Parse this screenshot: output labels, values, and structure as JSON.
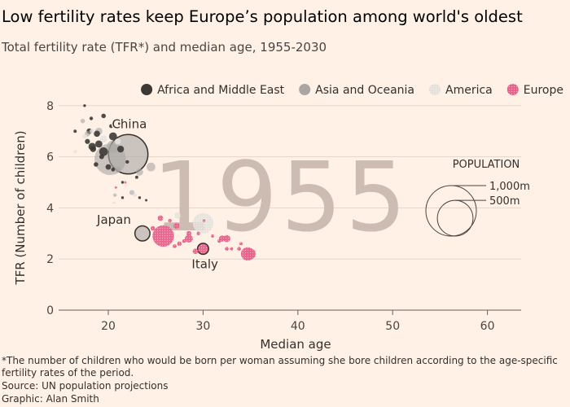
{
  "title": "Low fertility rates keep Europe’s population among world's oldest",
  "subtitle": "Total fertility rate (TFR*) and median age, 1955-2030",
  "chart_data": {
    "type": "scatter",
    "year": "1955",
    "xlabel": "Median age",
    "ylabel": "TFR (Number of children)",
    "xlim": [
      14,
      64
    ],
    "ylim": [
      0,
      8.3
    ],
    "xticks": [
      "20",
      "30",
      "40",
      "50",
      "60"
    ],
    "yticks": [
      "0",
      "2",
      "4",
      "6",
      "8"
    ],
    "grid": "horizontal",
    "legend_position": "top",
    "legend": [
      {
        "name": "Africa and Middle East",
        "color": "#3b3836"
      },
      {
        "name": "Asia and Oceania",
        "color": "#a9a6a3"
      },
      {
        "name": "America",
        "color": "#e4e0dc"
      },
      {
        "name": "Europe",
        "color": "#e8638c"
      }
    ],
    "size_legend": {
      "title": "POPULATION",
      "items": [
        {
          "label": "1,000m",
          "value": 1000
        },
        {
          "label": "500m",
          "value": 500
        }
      ]
    },
    "annotations": [
      {
        "label": "China",
        "age": 22.1,
        "tfr": 6.1
      },
      {
        "label": "Japan",
        "age": 23.6,
        "tfr": 3.0
      },
      {
        "label": "Italy",
        "age": 30.0,
        "tfr": 2.4
      }
    ],
    "series": [
      {
        "name": "Africa and Middle East",
        "points": [
          [
            17.5,
            8.0,
            3
          ],
          [
            19.5,
            7.6,
            8
          ],
          [
            18.2,
            7.5,
            5
          ],
          [
            16.5,
            7.0,
            4
          ],
          [
            18.0,
            7.0,
            12
          ],
          [
            18.8,
            6.9,
            15
          ],
          [
            17.8,
            6.6,
            10
          ],
          [
            19.0,
            6.5,
            20
          ],
          [
            18.4,
            6.3,
            14
          ],
          [
            20.3,
            7.2,
            6
          ],
          [
            20.5,
            6.8,
            25
          ],
          [
            19.3,
            6.0,
            9
          ],
          [
            18.3,
            6.4,
            22
          ],
          [
            21.3,
            6.3,
            18
          ],
          [
            20.0,
            5.6,
            12
          ],
          [
            23.0,
            5.2,
            4
          ],
          [
            20.5,
            5.5,
            6
          ],
          [
            22.0,
            5.8,
            5
          ],
          [
            21.5,
            5.0,
            3
          ],
          [
            19.5,
            6.2,
            30
          ],
          [
            18.7,
            5.7,
            8
          ],
          [
            23.3,
            4.4,
            3
          ],
          [
            21.5,
            4.4,
            3
          ],
          [
            24.0,
            4.3,
            2
          ],
          [
            21.2,
            7.3,
            4
          ]
        ]
      },
      {
        "name": "Asia and Oceania",
        "points": [
          [
            22.1,
            6.1,
            610
          ],
          [
            20.2,
            5.9,
            390
          ],
          [
            17.3,
            7.4,
            8
          ],
          [
            19.0,
            7.0,
            20
          ],
          [
            20.5,
            6.4,
            60
          ],
          [
            23.3,
            5.4,
            20
          ],
          [
            21.0,
            5.5,
            15
          ],
          [
            22.5,
            4.6,
            10
          ],
          [
            19.0,
            3.5,
            6
          ],
          [
            23.6,
            3.0,
            89
          ],
          [
            20.7,
            4.5,
            5
          ],
          [
            17.8,
            6.9,
            12
          ],
          [
            24.5,
            5.6,
            30
          ]
        ]
      },
      {
        "name": "America",
        "points": [
          [
            30.0,
            3.4,
            165
          ],
          [
            18.3,
            7.0,
            10
          ],
          [
            19.5,
            6.7,
            20
          ],
          [
            21.0,
            6.6,
            15
          ],
          [
            17.5,
            6.8,
            8
          ],
          [
            27.3,
            3.7,
            15
          ],
          [
            22.8,
            4.5,
            6
          ],
          [
            16.5,
            6.2,
            4
          ],
          [
            20.6,
            4.2,
            3
          ]
        ]
      },
      {
        "name": "Europe",
        "points": [
          [
            30.0,
            2.4,
            48
          ],
          [
            25.8,
            2.9,
            180
          ],
          [
            34.7,
            2.2,
            70
          ],
          [
            32.5,
            2.8,
            20
          ],
          [
            32.0,
            2.8,
            15
          ],
          [
            28.5,
            2.8,
            25
          ],
          [
            27.2,
            3.3,
            15
          ],
          [
            25.5,
            3.6,
            12
          ],
          [
            29.2,
            2.3,
            12
          ],
          [
            28.5,
            3.0,
            10
          ],
          [
            27.5,
            2.6,
            8
          ],
          [
            29.5,
            3.0,
            5
          ],
          [
            32.5,
            2.4,
            6
          ],
          [
            33.8,
            2.4,
            6
          ],
          [
            31.7,
            2.7,
            5
          ],
          [
            35.0,
            2.2,
            45
          ],
          [
            26.5,
            3.5,
            5
          ],
          [
            24.7,
            3.2,
            8
          ],
          [
            30.3,
            1.8,
            3
          ],
          [
            28.0,
            2.7,
            6
          ],
          [
            27.0,
            2.5,
            6
          ],
          [
            33.0,
            2.4,
            4
          ],
          [
            34.0,
            2.6,
            4
          ],
          [
            31.0,
            2.9,
            4
          ],
          [
            30.1,
            3.5,
            3
          ],
          [
            20.8,
            4.8,
            2
          ],
          [
            21.8,
            5.0,
            2
          ]
        ]
      }
    ]
  },
  "footnote": [
    "*The number of children who would be born per woman assuming she bore children according to the age-specific",
    "fertility rates of the period.",
    "Source: UN population projections",
    "Graphic: Alan Smith"
  ]
}
